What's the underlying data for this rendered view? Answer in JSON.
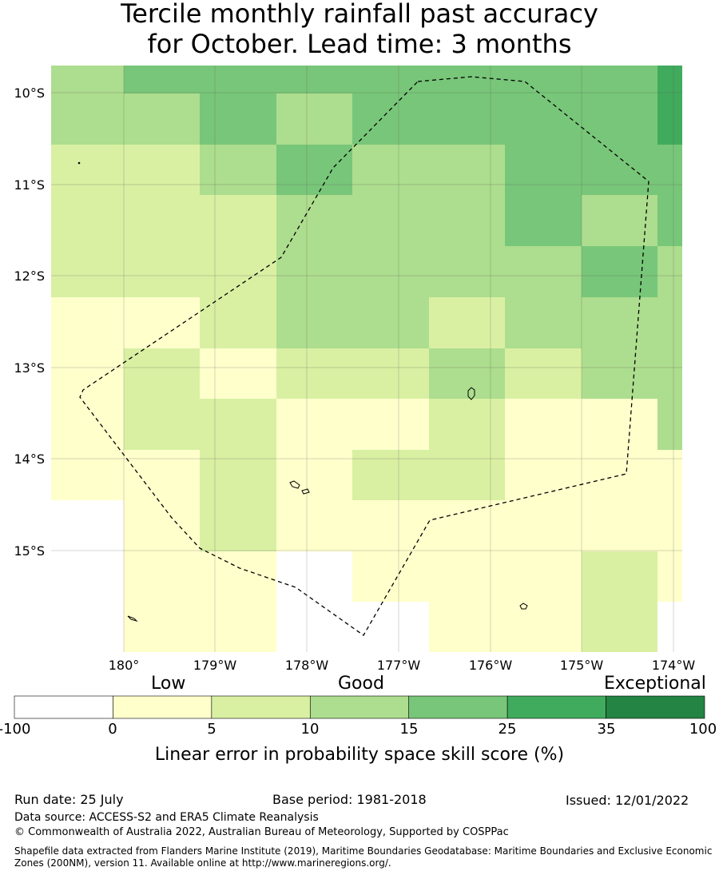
{
  "title_line1": "Tercile monthly rainfall past accuracy",
  "title_line2": "for October. Lead time: 3 months",
  "map": {
    "lat_labels": [
      "10°S",
      "11°S",
      "12°S",
      "13°S",
      "14°S",
      "15°S"
    ],
    "lon_labels": [
      "180°",
      "179°W",
      "178°W",
      "177°W",
      "176°W",
      "175°W",
      "174°W"
    ]
  },
  "legend": {
    "category_low": "Low",
    "category_good": "Good",
    "category_exceptional": "Exceptional",
    "ticks": [
      "-100",
      "0",
      "5",
      "10",
      "15",
      "25",
      "35",
      "100"
    ],
    "colors": [
      "#ffffff",
      "#ffffcc",
      "#d9f0a3",
      "#addd8e",
      "#78c679",
      "#41ab5d",
      "#238443"
    ],
    "label": "Linear error in probability space skill score (%)"
  },
  "footer": {
    "run_date": "Run date: 25 July",
    "base_period": "Base period: 1981-2018",
    "issued": "Issued: 12/01/2022",
    "data_source": "Data source: ACCESS-S2 and ERA5 Climate Reanalysis",
    "copyright": "© Commonwealth of Australia 2022, Australian Bureau of Meteorology, Supported by COSPPac",
    "shapefile_note": "Shapefile data extracted from Flanders Marine Institute (2019), Maritime Boundaries Geodatabase: Maritime Boundaries and Exclusive Economic Zones (200NM), version 11. Available online at http://www.marineregions.org/."
  }
}
